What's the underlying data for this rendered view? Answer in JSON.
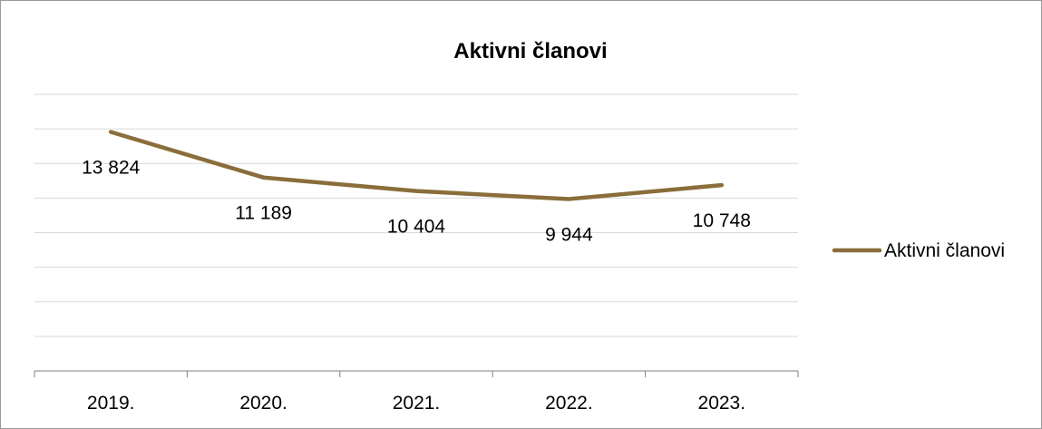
{
  "chart_data": {
    "type": "line",
    "title": "Aktivni članovi",
    "categories": [
      "2019.",
      "2020.",
      "2021.",
      "2022.",
      "2023."
    ],
    "series": [
      {
        "name": "Aktivni članovi",
        "values": [
          13824,
          11189,
          10404,
          9944,
          10748
        ],
        "labels": [
          "13 824",
          "11 189",
          "10 404",
          "9 944",
          "10 748"
        ]
      }
    ],
    "ylim": [
      0,
      16000
    ],
    "grid": true,
    "legend": "right",
    "colors": {
      "series": "#8a6d3b",
      "grid": "#d9d9d9",
      "axis": "#808080"
    }
  }
}
